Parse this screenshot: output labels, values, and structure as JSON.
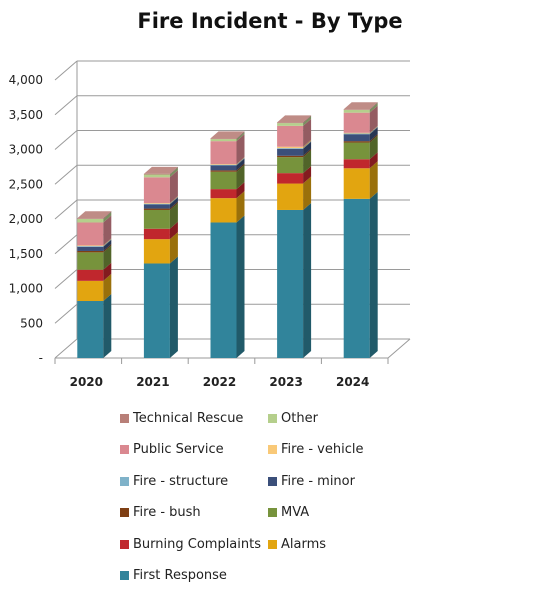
{
  "chart_data": {
    "type": "bar",
    "stacked": true,
    "three_d": true,
    "title": "Fire Incident - By Type",
    "xlabel": "",
    "ylabel": "",
    "categories": [
      "2020",
      "2021",
      "2022",
      "2023",
      "2024"
    ],
    "ylim": [
      0,
      4000
    ],
    "y_ticks": [
      "-",
      "500",
      "1,000",
      "1,500",
      "2,000",
      "2,500",
      "3,000",
      "3,500",
      "4,000"
    ],
    "grid": true,
    "legend_position": "bottom",
    "series": [
      {
        "name": "First Response",
        "color": "#31849B",
        "values": [
          820,
          1360,
          1950,
          2130,
          2290
        ]
      },
      {
        "name": "Alarms",
        "color": "#E2A510",
        "values": [
          290,
          350,
          350,
          380,
          440
        ]
      },
      {
        "name": "Burning Complaints",
        "color": "#C0272D",
        "values": [
          160,
          150,
          130,
          150,
          130
        ]
      },
      {
        "name": "MVA",
        "color": "#77933C",
        "values": [
          250,
          270,
          250,
          230,
          240
        ]
      },
      {
        "name": "Fire - bush",
        "color": "#7F3F14",
        "values": [
          20,
          20,
          20,
          20,
          20
        ]
      },
      {
        "name": "Fire - minor",
        "color": "#3B4F7A",
        "values": [
          60,
          60,
          70,
          100,
          100
        ]
      },
      {
        "name": "Fire - structure",
        "color": "#7FB2C9",
        "values": [
          10,
          10,
          10,
          10,
          10
        ]
      },
      {
        "name": "Fire - vehicle",
        "color": "#F9C978",
        "values": [
          10,
          10,
          10,
          20,
          10
        ]
      },
      {
        "name": "Public Service",
        "color": "#DA8890",
        "values": [
          330,
          370,
          330,
          300,
          290
        ]
      },
      {
        "name": "Other",
        "color": "#B5CF8C",
        "values": [
          50,
          40,
          30,
          40,
          40
        ]
      },
      {
        "name": "Technical Rescue",
        "color": "#B87F78",
        "values": [
          10,
          10,
          10,
          10,
          10
        ]
      }
    ],
    "legend_order": [
      "Technical Rescue",
      "Other",
      "Public Service",
      "Fire - vehicle",
      "Fire - structure",
      "Fire - minor",
      "Fire - bush",
      "MVA",
      "Burning Complaints",
      "Alarms",
      "First Response"
    ]
  }
}
